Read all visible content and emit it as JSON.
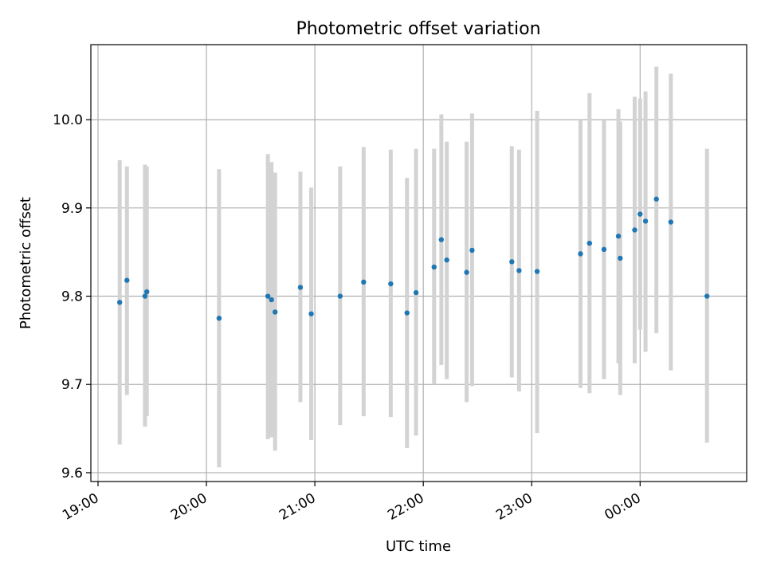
{
  "chart_data": {
    "type": "scatter",
    "title": "Photometric offset variation",
    "xlabel": "UTC time",
    "ylabel": "Photometric offset",
    "grid": true,
    "x_ticks": [
      "19:00",
      "20:00",
      "21:00",
      "22:00",
      "23:00",
      "00:00"
    ],
    "y_ticks": [
      "9.6",
      "9.7",
      "9.8",
      "9.9",
      "10.0"
    ],
    "x_range": [
      "19:00",
      "00:55"
    ],
    "y_range": [
      9.59,
      10.085
    ],
    "colors": {
      "point": "#1f77b4",
      "errorbar": "#d3d3d3",
      "grid": "#b0b0b0"
    },
    "points": [
      {
        "time": "19:12",
        "y": 9.793,
        "low": 9.632,
        "high": 9.954
      },
      {
        "time": "19:16",
        "y": 9.818,
        "low": 9.688,
        "high": 9.947
      },
      {
        "time": "19:26",
        "y": 9.8,
        "low": 9.652,
        "high": 9.949
      },
      {
        "time": "19:27",
        "y": 9.805,
        "low": 9.664,
        "high": 9.947
      },
      {
        "time": "20:07",
        "y": 9.775,
        "low": 9.606,
        "high": 9.944
      },
      {
        "time": "20:34",
        "y": 9.8,
        "low": 9.638,
        "high": 9.961
      },
      {
        "time": "20:36",
        "y": 9.796,
        "low": 9.64,
        "high": 9.952
      },
      {
        "time": "20:38",
        "y": 9.782,
        "low": 9.625,
        "high": 9.94
      },
      {
        "time": "20:52",
        "y": 9.81,
        "low": 9.68,
        "high": 9.941
      },
      {
        "time": "20:58",
        "y": 9.78,
        "low": 9.637,
        "high": 9.923
      },
      {
        "time": "21:14",
        "y": 9.8,
        "low": 9.654,
        "high": 9.947
      },
      {
        "time": "21:27",
        "y": 9.816,
        "low": 9.664,
        "high": 9.969
      },
      {
        "time": "21:42",
        "y": 9.814,
        "low": 9.663,
        "high": 9.966
      },
      {
        "time": "21:51",
        "y": 9.781,
        "low": 9.628,
        "high": 9.934
      },
      {
        "time": "21:56",
        "y": 9.804,
        "low": 9.642,
        "high": 9.967
      },
      {
        "time": "22:06",
        "y": 9.833,
        "low": 9.7,
        "high": 9.967
      },
      {
        "time": "22:10",
        "y": 9.864,
        "low": 9.722,
        "high": 10.006
      },
      {
        "time": "22:13",
        "y": 9.841,
        "low": 9.706,
        "high": 9.975
      },
      {
        "time": "22:24",
        "y": 9.827,
        "low": 9.68,
        "high": 9.975
      },
      {
        "time": "22:27",
        "y": 9.852,
        "low": 9.698,
        "high": 10.007
      },
      {
        "time": "22:49",
        "y": 9.839,
        "low": 9.708,
        "high": 9.97
      },
      {
        "time": "22:53",
        "y": 9.829,
        "low": 9.692,
        "high": 9.966
      },
      {
        "time": "23:03",
        "y": 9.828,
        "low": 9.645,
        "high": 10.01
      },
      {
        "time": "23:27",
        "y": 9.848,
        "low": 9.696,
        "high": 10.0
      },
      {
        "time": "23:32",
        "y": 9.86,
        "low": 9.69,
        "high": 10.03
      },
      {
        "time": "23:40",
        "y": 9.853,
        "low": 9.706,
        "high": 10.0
      },
      {
        "time": "23:48",
        "y": 9.868,
        "low": 9.724,
        "high": 10.012
      },
      {
        "time": "23:49",
        "y": 9.843,
        "low": 9.688,
        "high": 9.998
      },
      {
        "time": "23:57",
        "y": 9.875,
        "low": 9.724,
        "high": 10.026
      },
      {
        "time": "00:00",
        "y": 9.893,
        "low": 9.762,
        "high": 10.024
      },
      {
        "time": "00:03",
        "y": 9.885,
        "low": 9.737,
        "high": 10.032
      },
      {
        "time": "00:09",
        "y": 9.91,
        "low": 9.758,
        "high": 10.06
      },
      {
        "time": "00:17",
        "y": 9.884,
        "low": 9.716,
        "high": 10.052
      },
      {
        "time": "00:37",
        "y": 9.8,
        "low": 9.634,
        "high": 9.967
      }
    ]
  }
}
